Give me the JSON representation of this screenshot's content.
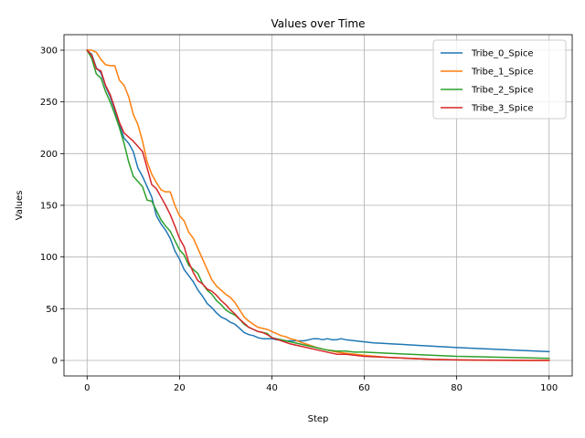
{
  "chart_data": {
    "type": "line",
    "title": "Values over Time",
    "xlabel": "Step",
    "ylabel": "Values",
    "xlim": [
      -5,
      105
    ],
    "ylim": [
      -15,
      315
    ],
    "xticks": [
      0,
      20,
      40,
      60,
      80,
      100
    ],
    "yticks": [
      0,
      50,
      100,
      150,
      200,
      250,
      300
    ],
    "grid": true,
    "legend_position": "top-right",
    "series": [
      {
        "name": "Tribe_0_Spice",
        "color": "#1f77b4",
        "x": [
          0,
          1,
          2,
          3,
          4,
          5,
          6,
          7,
          8,
          9,
          10,
          11,
          12,
          13,
          14,
          15,
          16,
          17,
          18,
          19,
          20,
          21,
          22,
          23,
          24,
          25,
          26,
          27,
          28,
          29,
          30,
          31,
          32,
          33,
          34,
          35,
          36,
          37,
          38,
          39,
          40,
          41,
          42,
          43,
          44,
          45,
          46,
          47,
          48,
          49,
          50,
          51,
          52,
          53,
          54,
          55,
          56,
          58,
          60,
          62,
          64,
          66,
          68,
          70,
          72,
          74,
          76,
          78,
          80,
          85,
          90,
          95,
          100
        ],
        "y": [
          300,
          296,
          283,
          278,
          265,
          255,
          242,
          228,
          215,
          210,
          202,
          186,
          178,
          168,
          158,
          140,
          132,
          126,
          118,
          106,
          98,
          88,
          82,
          76,
          68,
          62,
          55,
          51,
          46,
          42,
          40,
          37,
          35,
          31,
          27,
          25,
          24,
          22,
          21,
          21,
          21,
          20,
          20,
          19,
          19,
          19,
          19,
          19,
          20,
          21,
          21,
          20,
          21,
          20,
          20,
          21,
          20,
          19,
          18,
          17,
          16.5,
          16,
          15.5,
          15,
          14.5,
          14,
          13.5,
          13,
          12.5,
          11.5,
          10.5,
          9.5,
          8.5
        ]
      },
      {
        "name": "Tribe_1_Spice",
        "color": "#ff7f0e",
        "x": [
          0,
          1,
          2,
          3,
          4,
          5,
          6,
          7,
          8,
          9,
          10,
          11,
          12,
          13,
          14,
          15,
          16,
          17,
          18,
          19,
          20,
          21,
          22,
          23,
          24,
          25,
          26,
          27,
          28,
          29,
          30,
          31,
          32,
          33,
          34,
          35,
          36,
          37,
          38,
          39,
          40,
          41,
          42,
          43,
          44,
          45,
          46,
          48,
          50,
          52,
          54,
          56,
          58,
          60,
          65,
          70,
          75,
          80,
          85,
          90,
          95,
          100
        ],
        "y": [
          300,
          300,
          298,
          291,
          286,
          285,
          285,
          271,
          266,
          255,
          238,
          228,
          212,
          192,
          180,
          172,
          165,
          163,
          163,
          150,
          140,
          135,
          124,
          118,
          108,
          98,
          88,
          78,
          72,
          68,
          64,
          61,
          56,
          49,
          42,
          38,
          35,
          32,
          31,
          30,
          28,
          26,
          24,
          23,
          21,
          20,
          18,
          15,
          12,
          10,
          8,
          7,
          6,
          5,
          3,
          2,
          1,
          0.5,
          0.2,
          0.1,
          0,
          0
        ]
      },
      {
        "name": "Tribe_2_Spice",
        "color": "#2ca02c",
        "x": [
          0,
          1,
          2,
          3,
          4,
          5,
          6,
          7,
          8,
          9,
          10,
          11,
          12,
          13,
          14,
          15,
          16,
          17,
          18,
          19,
          20,
          21,
          22,
          23,
          24,
          25,
          26,
          27,
          28,
          29,
          30,
          31,
          32,
          33,
          34,
          35,
          36,
          37,
          38,
          39,
          40,
          42,
          44,
          46,
          48,
          50,
          52,
          54,
          56,
          58,
          60,
          65,
          70,
          75,
          80,
          85,
          90,
          95,
          100
        ],
        "y": [
          300,
          292,
          277,
          273,
          260,
          250,
          238,
          225,
          210,
          192,
          178,
          173,
          168,
          155,
          154,
          145,
          136,
          130,
          125,
          116,
          107,
          102,
          92,
          88,
          84,
          74,
          68,
          64,
          58,
          54,
          49,
          46,
          44,
          40,
          35,
          32,
          30,
          28,
          27,
          26,
          22,
          20,
          18,
          16,
          14,
          12,
          10,
          9,
          9,
          8,
          8,
          7,
          6,
          5,
          4,
          3.5,
          3,
          2.5,
          2
        ]
      },
      {
        "name": "Tribe_3_Spice",
        "color": "#d62728",
        "x": [
          0,
          1,
          2,
          3,
          4,
          5,
          6,
          7,
          8,
          9,
          10,
          11,
          12,
          13,
          14,
          15,
          16,
          17,
          18,
          19,
          20,
          21,
          22,
          23,
          24,
          25,
          26,
          27,
          28,
          29,
          30,
          31,
          32,
          33,
          34,
          35,
          36,
          37,
          38,
          39,
          40,
          42,
          44,
          46,
          48,
          50,
          52,
          53,
          54,
          55,
          56,
          58,
          60,
          65,
          70,
          75,
          80,
          85,
          90,
          95,
          100
        ],
        "y": [
          300,
          295,
          282,
          280,
          266,
          257,
          244,
          230,
          220,
          216,
          212,
          207,
          202,
          186,
          170,
          166,
          158,
          150,
          141,
          130,
          118,
          110,
          95,
          85,
          77,
          74,
          69,
          67,
          63,
          58,
          54,
          49,
          45,
          40,
          36,
          32,
          30,
          28,
          27,
          25,
          22,
          19,
          16,
          14,
          12,
          10,
          8,
          7,
          6,
          6,
          6,
          5,
          4,
          3,
          2,
          1,
          0.5,
          0.3,
          0.2,
          0.1,
          0
        ]
      }
    ]
  }
}
